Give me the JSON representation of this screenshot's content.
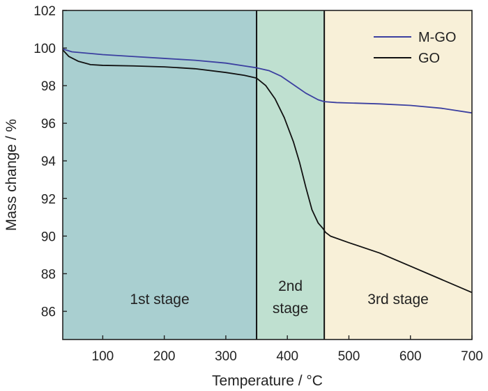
{
  "chart_data": {
    "type": "line",
    "xlabel": "Temperature / °C",
    "ylabel": "Mass change / %",
    "xlim": [
      35,
      700
    ],
    "ylim": [
      84.5,
      102
    ],
    "xticks": [
      100,
      200,
      300,
      400,
      500,
      600,
      700
    ],
    "yticks": [
      86,
      88,
      90,
      92,
      94,
      96,
      98,
      100,
      102
    ],
    "legend_position": "top-right",
    "stages": [
      {
        "name": "stage-1",
        "label_lines": [
          "1st stage"
        ],
        "x_range": [
          35,
          350
        ],
        "color": "#a9cfd0"
      },
      {
        "name": "stage-2",
        "label_lines": [
          "2nd",
          "stage"
        ],
        "x_range": [
          350,
          460
        ],
        "color": "#bfe0d0"
      },
      {
        "name": "stage-3",
        "label_lines": [
          "3rd stage"
        ],
        "x_range": [
          460,
          700
        ],
        "color": "#f8f0d8"
      }
    ],
    "series": [
      {
        "name": "M-GO",
        "color": "#3b3fa0",
        "x": [
          35,
          50,
          100,
          150,
          200,
          250,
          300,
          330,
          350,
          370,
          390,
          410,
          430,
          450,
          460,
          480,
          500,
          550,
          600,
          650,
          700
        ],
        "y": [
          99.95,
          99.8,
          99.65,
          99.55,
          99.45,
          99.35,
          99.2,
          99.05,
          98.95,
          98.8,
          98.5,
          98.05,
          97.6,
          97.25,
          97.15,
          97.1,
          97.08,
          97.03,
          96.95,
          96.8,
          96.55
        ]
      },
      {
        "name": "GO",
        "color": "#111111",
        "x": [
          35,
          45,
          60,
          80,
          100,
          150,
          200,
          250,
          300,
          330,
          350,
          365,
          380,
          395,
          410,
          420,
          430,
          440,
          450,
          458,
          462,
          470,
          500,
          550,
          600,
          650,
          700
        ],
        "y": [
          99.9,
          99.55,
          99.3,
          99.12,
          99.08,
          99.05,
          99.0,
          98.9,
          98.7,
          98.55,
          98.4,
          98.0,
          97.3,
          96.3,
          95.0,
          93.9,
          92.6,
          91.4,
          90.7,
          90.4,
          90.2,
          90.0,
          89.65,
          89.1,
          88.4,
          87.7,
          87.0
        ]
      }
    ]
  }
}
